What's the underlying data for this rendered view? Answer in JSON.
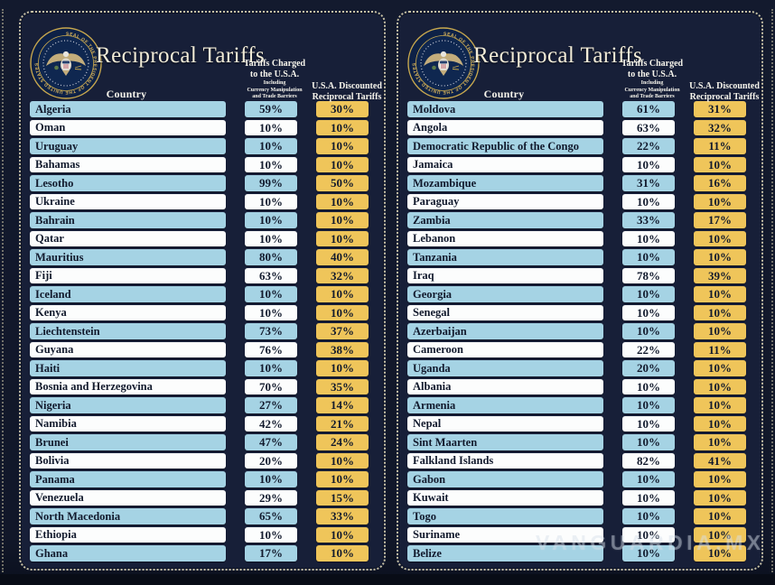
{
  "watermark": "VANGUARDIA.MX",
  "header": {
    "country_label": "Country",
    "charged_line1": "Tariffs Charged",
    "charged_line2": "to the U.S.A.",
    "charged_note1": "Including",
    "charged_note2": "Currency Manipulation",
    "charged_note3": "and Trade Barriers",
    "discounted_line1": "U.S.A. Discounted",
    "discounted_line2": "Reciprocal Tariffs"
  },
  "seal": {
    "ring_text": "SEAL OF THE PRESIDENT OF THE UNITED STATES"
  },
  "colors": {
    "page_bg": "#11172a",
    "panel_bg": "#171f38",
    "row_blue": "#a5d3e4",
    "row_white": "#fcfdfd",
    "cell_gold": "#efc55a",
    "title_ivory": "#f2ecd8",
    "border_dots": "#c7c1a5"
  },
  "chart_data": [
    {
      "type": "table",
      "title": "Reciprocal Tariffs",
      "columns": [
        "Country",
        "Tariffs Charged to the U.S.A. Including Currency Manipulation and Trade Barriers",
        "U.S.A. Discounted Reciprocal Tariffs"
      ],
      "rows": [
        {
          "country": "Algeria",
          "charged": "59%",
          "discounted": "30%"
        },
        {
          "country": "Oman",
          "charged": "10%",
          "discounted": "10%"
        },
        {
          "country": "Uruguay",
          "charged": "10%",
          "discounted": "10%"
        },
        {
          "country": "Bahamas",
          "charged": "10%",
          "discounted": "10%"
        },
        {
          "country": "Lesotho",
          "charged": "99%",
          "discounted": "50%"
        },
        {
          "country": "Ukraine",
          "charged": "10%",
          "discounted": "10%"
        },
        {
          "country": "Bahrain",
          "charged": "10%",
          "discounted": "10%"
        },
        {
          "country": "Qatar",
          "charged": "10%",
          "discounted": "10%"
        },
        {
          "country": "Mauritius",
          "charged": "80%",
          "discounted": "40%"
        },
        {
          "country": "Fiji",
          "charged": "63%",
          "discounted": "32%"
        },
        {
          "country": "Iceland",
          "charged": "10%",
          "discounted": "10%"
        },
        {
          "country": "Kenya",
          "charged": "10%",
          "discounted": "10%"
        },
        {
          "country": "Liechtenstein",
          "charged": "73%",
          "discounted": "37%"
        },
        {
          "country": "Guyana",
          "charged": "76%",
          "discounted": "38%"
        },
        {
          "country": "Haiti",
          "charged": "10%",
          "discounted": "10%"
        },
        {
          "country": "Bosnia and Herzegovina",
          "charged": "70%",
          "discounted": "35%"
        },
        {
          "country": "Nigeria",
          "charged": "27%",
          "discounted": "14%"
        },
        {
          "country": "Namibia",
          "charged": "42%",
          "discounted": "21%"
        },
        {
          "country": "Brunei",
          "charged": "47%",
          "discounted": "24%"
        },
        {
          "country": "Bolivia",
          "charged": "20%",
          "discounted": "10%"
        },
        {
          "country": "Panama",
          "charged": "10%",
          "discounted": "10%"
        },
        {
          "country": "Venezuela",
          "charged": "29%",
          "discounted": "15%"
        },
        {
          "country": "North Macedonia",
          "charged": "65%",
          "discounted": "33%"
        },
        {
          "country": "Ethiopia",
          "charged": "10%",
          "discounted": "10%"
        },
        {
          "country": "Ghana",
          "charged": "17%",
          "discounted": "10%"
        }
      ]
    },
    {
      "type": "table",
      "title": "Reciprocal Tariffs",
      "columns": [
        "Country",
        "Tariffs Charged to the U.S.A. Including Currency Manipulation and Trade Barriers",
        "U.S.A. Discounted Reciprocal Tariffs"
      ],
      "rows": [
        {
          "country": "Moldova",
          "charged": "61%",
          "discounted": "31%"
        },
        {
          "country": "Angola",
          "charged": "63%",
          "discounted": "32%"
        },
        {
          "country": "Democratic Republic of the Congo",
          "charged": "22%",
          "discounted": "11%"
        },
        {
          "country": "Jamaica",
          "charged": "10%",
          "discounted": "10%"
        },
        {
          "country": "Mozambique",
          "charged": "31%",
          "discounted": "16%"
        },
        {
          "country": "Paraguay",
          "charged": "10%",
          "discounted": "10%"
        },
        {
          "country": "Zambia",
          "charged": "33%",
          "discounted": "17%"
        },
        {
          "country": "Lebanon",
          "charged": "10%",
          "discounted": "10%"
        },
        {
          "country": "Tanzania",
          "charged": "10%",
          "discounted": "10%"
        },
        {
          "country": "Iraq",
          "charged": "78%",
          "discounted": "39%"
        },
        {
          "country": "Georgia",
          "charged": "10%",
          "discounted": "10%"
        },
        {
          "country": "Senegal",
          "charged": "10%",
          "discounted": "10%"
        },
        {
          "country": "Azerbaijan",
          "charged": "10%",
          "discounted": "10%"
        },
        {
          "country": "Cameroon",
          "charged": "22%",
          "discounted": "11%"
        },
        {
          "country": "Uganda",
          "charged": "20%",
          "discounted": "10%"
        },
        {
          "country": "Albania",
          "charged": "10%",
          "discounted": "10%"
        },
        {
          "country": "Armenia",
          "charged": "10%",
          "discounted": "10%"
        },
        {
          "country": "Nepal",
          "charged": "10%",
          "discounted": "10%"
        },
        {
          "country": "Sint Maarten",
          "charged": "10%",
          "discounted": "10%"
        },
        {
          "country": "Falkland Islands",
          "charged": "82%",
          "discounted": "41%"
        },
        {
          "country": "Gabon",
          "charged": "10%",
          "discounted": "10%"
        },
        {
          "country": "Kuwait",
          "charged": "10%",
          "discounted": "10%"
        },
        {
          "country": "Togo",
          "charged": "10%",
          "discounted": "10%"
        },
        {
          "country": "Suriname",
          "charged": "10%",
          "discounted": "10%"
        },
        {
          "country": "Belize",
          "charged": "10%",
          "discounted": "10%"
        }
      ]
    }
  ]
}
